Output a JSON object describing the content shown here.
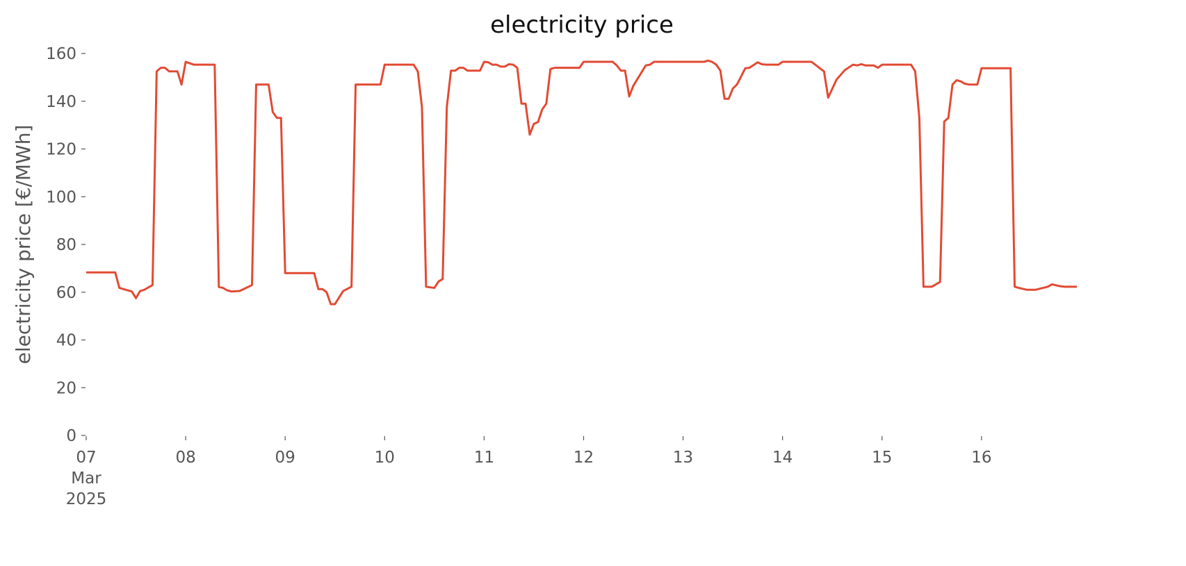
{
  "chart_data": {
    "type": "line",
    "title": "electricity price",
    "y_label": "electricity price [€/MWh]",
    "x": [
      "2025-03-07T00:00",
      "2025-03-07T07:00",
      "2025-03-07T08:00",
      "2025-03-07T11:00",
      "2025-03-07T12:00",
      "2025-03-07T13:00",
      "2025-03-07T14:00",
      "2025-03-07T16:00",
      "2025-03-07T17:00",
      "2025-03-07T18:00",
      "2025-03-07T19:00",
      "2025-03-07T20:00",
      "2025-03-07T22:00",
      "2025-03-07T23:00",
      "2025-03-08T00:00",
      "2025-03-08T02:00",
      "2025-03-08T07:00",
      "2025-03-08T08:00",
      "2025-03-08T09:00",
      "2025-03-08T10:00",
      "2025-03-08T11:00",
      "2025-03-08T13:00",
      "2025-03-08T14:00",
      "2025-03-08T16:00",
      "2025-03-08T17:00",
      "2025-03-08T20:00",
      "2025-03-08T21:00",
      "2025-03-08T22:00",
      "2025-03-08T23:00",
      "2025-03-09T00:00",
      "2025-03-09T07:00",
      "2025-03-09T08:00",
      "2025-03-09T09:00",
      "2025-03-09T10:00",
      "2025-03-09T11:00",
      "2025-03-09T12:00",
      "2025-03-09T14:00",
      "2025-03-09T16:00",
      "2025-03-09T17:00",
      "2025-03-09T23:00",
      "2025-03-10T00:00",
      "2025-03-10T07:00",
      "2025-03-10T08:00",
      "2025-03-10T09:00",
      "2025-03-10T10:00",
      "2025-03-10T12:00",
      "2025-03-10T13:00",
      "2025-03-10T14:00",
      "2025-03-10T15:00",
      "2025-03-10T16:00",
      "2025-03-10T17:00",
      "2025-03-10T18:00",
      "2025-03-10T19:00",
      "2025-03-10T20:00",
      "2025-03-10T23:00",
      "2025-03-11T00:00",
      "2025-03-11T01:00",
      "2025-03-11T02:00",
      "2025-03-11T03:00",
      "2025-03-11T04:00",
      "2025-03-11T05:00",
      "2025-03-11T06:00",
      "2025-03-11T07:00",
      "2025-03-11T08:00",
      "2025-03-11T09:00",
      "2025-03-11T10:00",
      "2025-03-11T11:00",
      "2025-03-11T12:00",
      "2025-03-11T13:00",
      "2025-03-11T14:00",
      "2025-03-11T15:00",
      "2025-03-11T16:00",
      "2025-03-11T17:00",
      "2025-03-11T23:00",
      "2025-03-12T00:00",
      "2025-03-12T07:00",
      "2025-03-12T08:00",
      "2025-03-12T09:00",
      "2025-03-12T10:00",
      "2025-03-12T11:00",
      "2025-03-12T12:00",
      "2025-03-12T15:00",
      "2025-03-12T16:00",
      "2025-03-12T17:00",
      "2025-03-13T05:00",
      "2025-03-13T06:00",
      "2025-03-13T07:00",
      "2025-03-13T08:00",
      "2025-03-13T09:00",
      "2025-03-13T10:00",
      "2025-03-13T11:00",
      "2025-03-13T12:00",
      "2025-03-13T13:00",
      "2025-03-13T15:00",
      "2025-03-13T16:00",
      "2025-03-13T18:00",
      "2025-03-13T19:00",
      "2025-03-13T20:00",
      "2025-03-13T23:00",
      "2025-03-14T00:00",
      "2025-03-14T07:00",
      "2025-03-14T10:00",
      "2025-03-14T11:00",
      "2025-03-14T13:00",
      "2025-03-14T15:00",
      "2025-03-14T17:00",
      "2025-03-14T18:00",
      "2025-03-14T19:00",
      "2025-03-14T20:00",
      "2025-03-14T22:00",
      "2025-03-14T23:00",
      "2025-03-15T00:00",
      "2025-03-15T07:00",
      "2025-03-15T08:00",
      "2025-03-15T09:00",
      "2025-03-15T10:00",
      "2025-03-15T12:00",
      "2025-03-15T13:00",
      "2025-03-15T14:00",
      "2025-03-15T15:00",
      "2025-03-15T16:00",
      "2025-03-15T17:00",
      "2025-03-15T18:00",
      "2025-03-15T19:00",
      "2025-03-15T20:00",
      "2025-03-15T21:00",
      "2025-03-15T23:00",
      "2025-03-16T00:00",
      "2025-03-16T07:00",
      "2025-03-16T08:00",
      "2025-03-16T09:00",
      "2025-03-16T11:00",
      "2025-03-16T13:00",
      "2025-03-16T16:00",
      "2025-03-16T17:00",
      "2025-03-16T19:00",
      "2025-03-16T20:00",
      "2025-03-16T23:00"
    ],
    "series": [
      {
        "color": "#e24a33",
        "values": [
          68.3,
          68.3,
          61.8,
          60.3,
          57.5,
          60.5,
          61,
          63,
          152.5,
          154,
          154,
          152.5,
          152.5,
          147,
          156.5,
          155.3,
          155.3,
          62.2,
          61.8,
          60.8,
          60.3,
          60.5,
          61.3,
          63,
          147,
          147,
          135.5,
          133,
          133,
          68,
          68,
          61.3,
          61.3,
          60,
          55,
          55,
          60.5,
          62.3,
          147,
          147,
          155.3,
          155.3,
          152.5,
          137.5,
          62.3,
          61.8,
          64.5,
          65.5,
          137.5,
          152.8,
          152.8,
          154,
          154,
          152.8,
          152.8,
          156.5,
          156.3,
          155.3,
          155.3,
          154.5,
          154.5,
          155.5,
          155.3,
          154,
          139,
          139,
          126,
          130.5,
          131.3,
          136.5,
          139,
          153.5,
          154,
          154,
          156.5,
          156.5,
          155,
          152.8,
          152.8,
          142,
          146.5,
          155,
          155.3,
          156.5,
          156.5,
          157,
          156.5,
          155.3,
          152.8,
          141,
          141,
          145.3,
          147,
          153.8,
          154,
          156.3,
          155.5,
          155.3,
          155.3,
          156.5,
          156.5,
          152.5,
          141.5,
          149,
          153,
          155.3,
          155,
          155.5,
          155,
          155,
          154,
          155.3,
          155.3,
          152.5,
          133,
          62.3,
          62.3,
          63.3,
          64.3,
          131.5,
          133,
          147,
          148.8,
          148.3,
          147.3,
          147,
          147,
          153.8,
          153.8,
          62.3,
          61.8,
          61,
          61,
          62.3,
          63.3,
          62.5,
          62.3,
          62.3
        ]
      }
    ],
    "xlim": [
      "2025-03-07T00:00",
      "2025-03-16T23:00"
    ],
    "xticks": [
      {
        "value": "2025-03-07T00:00",
        "label": "07\nMar\n2025"
      },
      {
        "value": "2025-03-08T00:00",
        "label": "08"
      },
      {
        "value": "2025-03-09T00:00",
        "label": "09"
      },
      {
        "value": "2025-03-10T00:00",
        "label": "10"
      },
      {
        "value": "2025-03-11T00:00",
        "label": "11"
      },
      {
        "value": "2025-03-12T00:00",
        "label": "12"
      },
      {
        "value": "2025-03-13T00:00",
        "label": "13"
      },
      {
        "value": "2025-03-14T00:00",
        "label": "14"
      },
      {
        "value": "2025-03-15T00:00",
        "label": "15"
      },
      {
        "value": "2025-03-16T00:00",
        "label": "16"
      }
    ],
    "ylim": [
      0,
      160
    ],
    "yticks": [
      0,
      20,
      40,
      60,
      80,
      100,
      120,
      140,
      160
    ],
    "grid": false
  }
}
